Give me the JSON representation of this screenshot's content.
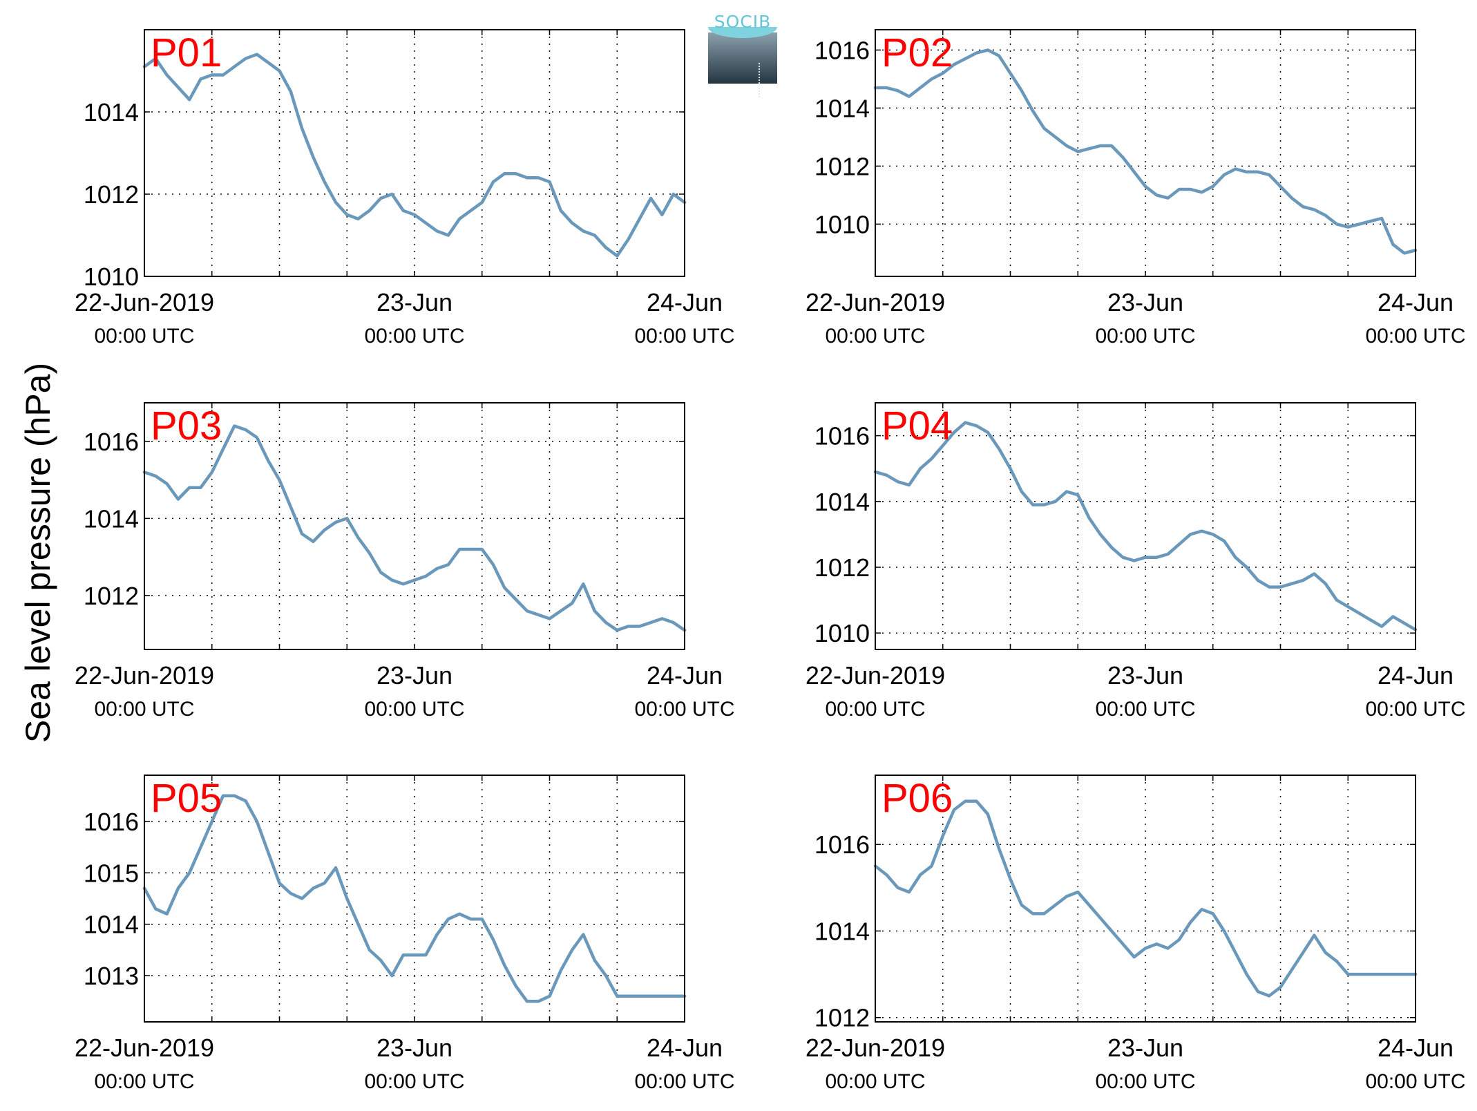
{
  "figure": {
    "ylabel": "Sea level pressure (hPa)",
    "logo_text": "SOCIB",
    "line_color": "#6a98bb",
    "title_color": "#ff0000"
  },
  "chart_data": [
    {
      "type": "line",
      "title": "P01",
      "x_ticks": [
        "22-Jun-2019 00:00 UTC",
        "23-Jun 00:00 UTC",
        "24-Jun 00:00 UTC"
      ],
      "ylim": [
        1010,
        1016
      ],
      "yticks": [
        1010,
        1012,
        1014
      ],
      "grid": true,
      "series": [
        {
          "x": [
            0,
            1,
            2,
            3,
            4,
            5,
            6,
            7,
            8,
            9,
            10,
            11,
            12,
            13,
            14,
            15,
            16,
            17,
            18,
            19,
            20,
            21,
            22,
            23,
            24,
            25,
            26,
            27,
            28,
            29,
            30,
            31,
            32,
            33,
            34,
            35,
            36,
            37,
            38,
            39,
            40,
            41,
            42,
            43,
            44,
            45,
            46,
            47,
            48
          ],
          "values": [
            1015.1,
            1015.3,
            1014.9,
            1014.6,
            1014.3,
            1014.8,
            1014.9,
            1014.9,
            1015.1,
            1015.3,
            1015.4,
            1015.2,
            1015.0,
            1014.5,
            1013.6,
            1012.9,
            1012.3,
            1011.8,
            1011.5,
            1011.4,
            1011.6,
            1011.9,
            1012.0,
            1011.6,
            1011.5,
            1011.3,
            1011.1,
            1011.0,
            1011.4,
            1011.6,
            1011.8,
            1012.3,
            1012.5,
            1012.5,
            1012.4,
            1012.4,
            1012.3,
            1011.6,
            1011.3,
            1011.1,
            1011.0,
            1010.7,
            1010.5,
            1010.9,
            1011.4,
            1011.9,
            1011.5,
            1012.0,
            1011.8
          ]
        }
      ]
    },
    {
      "type": "line",
      "title": "P02",
      "x_ticks": [
        "22-Jun-2019 00:00 UTC",
        "23-Jun 00:00 UTC",
        "24-Jun 00:00 UTC"
      ],
      "ylim": [
        1008.2,
        1016.7
      ],
      "yticks": [
        1010,
        1012,
        1014,
        1016
      ],
      "grid": true,
      "series": [
        {
          "x": [
            0,
            1,
            2,
            3,
            4,
            5,
            6,
            7,
            8,
            9,
            10,
            11,
            12,
            13,
            14,
            15,
            16,
            17,
            18,
            19,
            20,
            21,
            22,
            23,
            24,
            25,
            26,
            27,
            28,
            29,
            30,
            31,
            32,
            33,
            34,
            35,
            36,
            37,
            38,
            39,
            40,
            41,
            42,
            43,
            44,
            45,
            46,
            47,
            48
          ],
          "values": [
            1014.7,
            1014.7,
            1014.6,
            1014.4,
            1014.7,
            1015.0,
            1015.2,
            1015.5,
            1015.7,
            1015.9,
            1016.0,
            1015.8,
            1015.2,
            1014.6,
            1013.9,
            1013.3,
            1013.0,
            1012.7,
            1012.5,
            1012.6,
            1012.7,
            1012.7,
            1012.3,
            1011.8,
            1011.3,
            1011.0,
            1010.9,
            1011.2,
            1011.2,
            1011.1,
            1011.3,
            1011.7,
            1011.9,
            1011.8,
            1011.8,
            1011.7,
            1011.3,
            1010.9,
            1010.6,
            1010.5,
            1010.3,
            1010.0,
            1009.9,
            1010.0,
            1010.1,
            1010.2,
            1009.3,
            1009.0,
            1009.1
          ]
        }
      ]
    },
    {
      "type": "line",
      "title": "P03",
      "x_ticks": [
        "22-Jun-2019 00:00 UTC",
        "23-Jun 00:00 UTC",
        "24-Jun 00:00 UTC"
      ],
      "ylim": [
        1010.6,
        1017
      ],
      "yticks": [
        1012,
        1014,
        1016
      ],
      "grid": true,
      "series": [
        {
          "x": [
            0,
            1,
            2,
            3,
            4,
            5,
            6,
            7,
            8,
            9,
            10,
            11,
            12,
            13,
            14,
            15,
            16,
            17,
            18,
            19,
            20,
            21,
            22,
            23,
            24,
            25,
            26,
            27,
            28,
            29,
            30,
            31,
            32,
            33,
            34,
            35,
            36,
            37,
            38,
            39,
            40,
            41,
            42,
            43,
            44,
            45,
            46,
            47,
            48
          ],
          "values": [
            1015.2,
            1015.1,
            1014.9,
            1014.5,
            1014.8,
            1014.8,
            1015.2,
            1015.8,
            1016.4,
            1016.3,
            1016.1,
            1015.5,
            1015.0,
            1014.3,
            1013.6,
            1013.4,
            1013.7,
            1013.9,
            1014.0,
            1013.5,
            1013.1,
            1012.6,
            1012.4,
            1012.3,
            1012.4,
            1012.5,
            1012.7,
            1012.8,
            1013.2,
            1013.2,
            1013.2,
            1012.8,
            1012.2,
            1011.9,
            1011.6,
            1011.5,
            1011.4,
            1011.6,
            1011.8,
            1012.3,
            1011.6,
            1011.3,
            1011.1,
            1011.2,
            1011.2,
            1011.3,
            1011.4,
            1011.3,
            1011.1
          ]
        }
      ]
    },
    {
      "type": "line",
      "title": "P04",
      "x_ticks": [
        "22-Jun-2019 00:00 UTC",
        "23-Jun 00:00 UTC",
        "24-Jun 00:00 UTC"
      ],
      "ylim": [
        1009.5,
        1017
      ],
      "yticks": [
        1010,
        1012,
        1014,
        1016
      ],
      "grid": true,
      "series": [
        {
          "x": [
            0,
            1,
            2,
            3,
            4,
            5,
            6,
            7,
            8,
            9,
            10,
            11,
            12,
            13,
            14,
            15,
            16,
            17,
            18,
            19,
            20,
            21,
            22,
            23,
            24,
            25,
            26,
            27,
            28,
            29,
            30,
            31,
            32,
            33,
            34,
            35,
            36,
            37,
            38,
            39,
            40,
            41,
            42,
            43,
            44,
            45,
            46,
            47,
            48
          ],
          "values": [
            1014.9,
            1014.8,
            1014.6,
            1014.5,
            1015.0,
            1015.3,
            1015.7,
            1016.1,
            1016.4,
            1016.3,
            1016.1,
            1015.6,
            1015.0,
            1014.3,
            1013.9,
            1013.9,
            1014.0,
            1014.3,
            1014.2,
            1013.5,
            1013.0,
            1012.6,
            1012.3,
            1012.2,
            1012.3,
            1012.3,
            1012.4,
            1012.7,
            1013.0,
            1013.1,
            1013.0,
            1012.8,
            1012.3,
            1012.0,
            1011.6,
            1011.4,
            1011.4,
            1011.5,
            1011.6,
            1011.8,
            1011.5,
            1011.0,
            1010.8,
            1010.6,
            1010.4,
            1010.2,
            1010.5,
            1010.3,
            1010.1
          ]
        }
      ]
    },
    {
      "type": "line",
      "title": "P05",
      "x_ticks": [
        "22-Jun-2019 00:00 UTC",
        "23-Jun 00:00 UTC",
        "24-Jun 00:00 UTC"
      ],
      "ylim": [
        1012.1,
        1016.9
      ],
      "yticks": [
        1013,
        1014,
        1015,
        1016
      ],
      "grid": true,
      "series": [
        {
          "x": [
            0,
            1,
            2,
            3,
            4,
            5,
            6,
            7,
            8,
            9,
            10,
            11,
            12,
            13,
            14,
            15,
            16,
            17,
            18,
            19,
            20,
            21,
            22,
            23,
            24,
            25,
            26,
            27,
            28,
            29,
            30,
            31,
            32,
            33,
            34,
            35,
            36,
            37,
            38,
            39,
            40,
            41,
            42,
            43,
            44,
            45,
            46,
            47,
            48
          ],
          "values": [
            1014.7,
            1014.3,
            1014.2,
            1014.7,
            1015.0,
            1015.5,
            1016.0,
            1016.5,
            1016.5,
            1016.4,
            1016.0,
            1015.4,
            1014.8,
            1014.6,
            1014.5,
            1014.7,
            1014.8,
            1015.1,
            1014.5,
            1014.0,
            1013.5,
            1013.3,
            1013.0,
            1013.4,
            1013.4,
            1013.4,
            1013.8,
            1014.1,
            1014.2,
            1014.1,
            1014.1,
            1013.7,
            1013.2,
            1012.8,
            1012.5,
            1012.5,
            1012.6,
            1013.1,
            1013.5,
            1013.8,
            1013.3,
            1013.0,
            1012.6,
            1012.6,
            1012.6,
            1012.6,
            1012.6,
            1012.6,
            1012.6
          ]
        }
      ]
    },
    {
      "type": "line",
      "title": "P06",
      "x_ticks": [
        "22-Jun-2019 00:00 UTC",
        "23-Jun 00:00 UTC",
        "24-Jun 00:00 UTC"
      ],
      "ylim": [
        1011.9,
        1017.6
      ],
      "yticks": [
        1012,
        1014,
        1016
      ],
      "grid": true,
      "series": [
        {
          "x": [
            0,
            1,
            2,
            3,
            4,
            5,
            6,
            7,
            8,
            9,
            10,
            11,
            12,
            13,
            14,
            15,
            16,
            17,
            18,
            19,
            20,
            21,
            22,
            23,
            24,
            25,
            26,
            27,
            28,
            29,
            30,
            31,
            32,
            33,
            34,
            35,
            36,
            37,
            38,
            39,
            40,
            41,
            42,
            43,
            44,
            45,
            46,
            47,
            48
          ],
          "values": [
            1015.5,
            1015.3,
            1015.0,
            1014.9,
            1015.3,
            1015.5,
            1016.2,
            1016.8,
            1017.0,
            1017.0,
            1016.7,
            1015.9,
            1015.2,
            1014.6,
            1014.4,
            1014.4,
            1014.6,
            1014.8,
            1014.9,
            1014.6,
            1014.3,
            1014.0,
            1013.7,
            1013.4,
            1013.6,
            1013.7,
            1013.6,
            1013.8,
            1014.2,
            1014.5,
            1014.4,
            1014.0,
            1013.5,
            1013.0,
            1012.6,
            1012.5,
            1012.7,
            1013.1,
            1013.5,
            1013.9,
            1013.5,
            1013.3,
            1013.0,
            1013.0,
            1013.0,
            1013.0,
            1013.0,
            1013.0,
            1013.0
          ]
        }
      ]
    }
  ]
}
